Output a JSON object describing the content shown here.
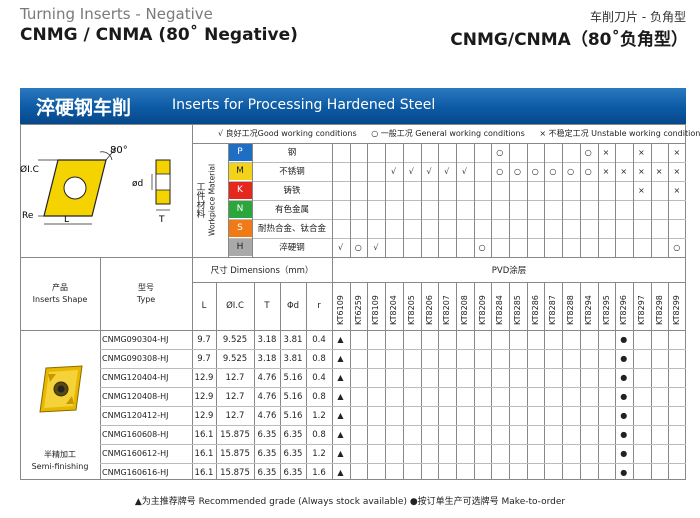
{
  "header": {
    "left_sub": "Turning Inserts - Negative",
    "left_main": "CNMG / CNMA (80˚ Negative)",
    "right_sub": "车削刀片 - 负角型",
    "right_main": "CNMG/CNMA（80˚负角型）"
  },
  "banner": {
    "cn": "淬硬钢车削",
    "en": "Inserts for Processing Hardened Steel"
  },
  "legend": {
    "good": "√ 良好工况Good working conditions",
    "general": "○ 一般工况 General working conditions",
    "unstable": "× 不稳定工况  Unstable working conditions"
  },
  "diagram": {
    "angle": "80°",
    "ic": "ØI.C",
    "d": "ød",
    "re": "Re",
    "l": "L",
    "t": "T"
  },
  "workpiece_label_cn": "工件材料",
  "workpiece_label_en": "Workpiece Material",
  "materials": [
    {
      "code": "P",
      "name": "钢",
      "color": "#1e6fc4",
      "text": "#ffffff"
    },
    {
      "code": "M",
      "name": "不锈钢",
      "color": "#f2d31a",
      "text": "#222222"
    },
    {
      "code": "K",
      "name": "铸铁",
      "color": "#e5281e",
      "text": "#ffffff"
    },
    {
      "code": "N",
      "name": "有色金属",
      "color": "#2aa63c",
      "text": "#ffffff"
    },
    {
      "code": "S",
      "name": "耐热合金、钛合金",
      "color": "#ef7a16",
      "text": "#ffffff"
    },
    {
      "code": "H",
      "name": "淬硬钢",
      "color": "#a9a9a9",
      "text": "#222222"
    }
  ],
  "grades": [
    "KT6109",
    "KT6259",
    "KT8109",
    "KT8204",
    "KT8205",
    "KT8206",
    "KT8207",
    "KT8208",
    "KT8209",
    "KT8284",
    "KT8285",
    "KT8286",
    "KT8287",
    "KT8288",
    "KT8294",
    "KT8295",
    "KT8296",
    "KT8297",
    "KT8298",
    "KT8299"
  ],
  "workpiece_marks": [
    [
      "",
      "",
      "",
      "",
      "",
      "",
      "",
      "",
      "",
      "○",
      "",
      "",
      "",
      "",
      "○",
      "×",
      "",
      "×",
      "",
      "×"
    ],
    [
      "",
      "",
      "",
      "√",
      "√",
      "√",
      "√",
      "√",
      "",
      "○",
      "○",
      "○",
      "○",
      "○",
      "○",
      "×",
      "×",
      "×",
      "×",
      "×"
    ],
    [
      "",
      "",
      "",
      "",
      "",
      "",
      "",
      "",
      "",
      "",
      "",
      "",
      "",
      "",
      "",
      "",
      "",
      "×",
      "",
      "×"
    ],
    [
      "",
      "",
      "",
      "",
      "",
      "",
      "",
      "",
      "",
      "",
      "",
      "",
      "",
      "",
      "",
      "",
      "",
      "",
      "",
      ""
    ],
    [
      "",
      "",
      "",
      "",
      "",
      "",
      "",
      "",
      "",
      "",
      "",
      "",
      "",
      "",
      "",
      "",
      "",
      "",
      "",
      ""
    ],
    [
      "√",
      "○",
      "√",
      "",
      "",
      "",
      "",
      "",
      "○",
      "",
      "",
      "",
      "",
      "",
      "",
      "",
      "",
      "",
      "",
      "○"
    ]
  ],
  "table_header": {
    "shape_cn": "产品",
    "shape_en": "Inserts Shape",
    "type_cn": "型号",
    "type_en": "Type",
    "dims_title": "尺寸 Dimensions（mm）",
    "dims": [
      "L",
      "ØI.C",
      "T",
      "Φd",
      "r"
    ],
    "coating": "PVD涂层"
  },
  "shape_caption_cn": "半精加工",
  "shape_caption_en": "Semi-finishing",
  "rows": [
    {
      "type": "CNMG090304-HJ",
      "L": "9.7",
      "IC": "9.525",
      "T": "3.18",
      "d": "3.81",
      "r": "0.4",
      "marks": [
        "▲",
        "",
        "",
        "",
        "",
        "",
        "",
        "",
        "",
        "",
        "",
        "",
        "",
        "",
        "",
        "",
        "●",
        "",
        "",
        ""
      ]
    },
    {
      "type": "CNMG090308-HJ",
      "L": "9.7",
      "IC": "9.525",
      "T": "3.18",
      "d": "3.81",
      "r": "0.8",
      "marks": [
        "▲",
        "",
        "",
        "",
        "",
        "",
        "",
        "",
        "",
        "",
        "",
        "",
        "",
        "",
        "",
        "",
        "●",
        "",
        "",
        ""
      ]
    },
    {
      "type": "CNMG120404-HJ",
      "L": "12.9",
      "IC": "12.7",
      "T": "4.76",
      "d": "5.16",
      "r": "0.4",
      "marks": [
        "▲",
        "",
        "",
        "",
        "",
        "",
        "",
        "",
        "",
        "",
        "",
        "",
        "",
        "",
        "",
        "",
        "●",
        "",
        "",
        ""
      ]
    },
    {
      "type": "CNMG120408-HJ",
      "L": "12.9",
      "IC": "12.7",
      "T": "4.76",
      "d": "5.16",
      "r": "0.8",
      "marks": [
        "▲",
        "",
        "",
        "",
        "",
        "",
        "",
        "",
        "",
        "",
        "",
        "",
        "",
        "",
        "",
        "",
        "●",
        "",
        "",
        ""
      ]
    },
    {
      "type": "CNMG120412-HJ",
      "L": "12.9",
      "IC": "12.7",
      "T": "4.76",
      "d": "5.16",
      "r": "1.2",
      "marks": [
        "▲",
        "",
        "",
        "",
        "",
        "",
        "",
        "",
        "",
        "",
        "",
        "",
        "",
        "",
        "",
        "",
        "●",
        "",
        "",
        ""
      ]
    },
    {
      "type": "CNMG160608-HJ",
      "L": "16.1",
      "IC": "15.875",
      "T": "6.35",
      "d": "6.35",
      "r": "0.8",
      "marks": [
        "▲",
        "",
        "",
        "",
        "",
        "",
        "",
        "",
        "",
        "",
        "",
        "",
        "",
        "",
        "",
        "",
        "●",
        "",
        "",
        ""
      ]
    },
    {
      "type": "CNMG160612-HJ",
      "L": "16.1",
      "IC": "15.875",
      "T": "6.35",
      "d": "6.35",
      "r": "1.2",
      "marks": [
        "▲",
        "",
        "",
        "",
        "",
        "",
        "",
        "",
        "",
        "",
        "",
        "",
        "",
        "",
        "",
        "",
        "●",
        "",
        "",
        ""
      ]
    },
    {
      "type": "CNMG160616-HJ",
      "L": "16.1",
      "IC": "15.875",
      "T": "6.35",
      "d": "6.35",
      "r": "1.6",
      "marks": [
        "▲",
        "",
        "",
        "",
        "",
        "",
        "",
        "",
        "",
        "",
        "",
        "",
        "",
        "",
        "",
        "",
        "●",
        "",
        "",
        ""
      ]
    }
  ],
  "footer": "▲为主推荐牌号  Recommended  grade (Always stock available)  ●按订单生产可选牌号  Make-to-order"
}
